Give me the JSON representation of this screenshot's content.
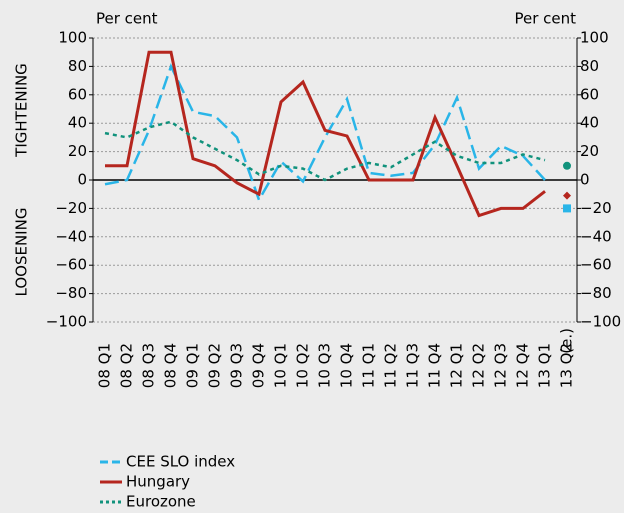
{
  "chart_data": {
    "type": "line",
    "y_label_left": "Per cent",
    "y_label_right": "Per cent",
    "annotation_top": "TIGHTENING",
    "annotation_bottom": "LOOSENING",
    "estimate_label": "(e.)",
    "categories": [
      "08 Q1",
      "08 Q2",
      "08 Q3",
      "08 Q4",
      "09 Q1",
      "09 Q2",
      "09 Q3",
      "09 Q4",
      "10 Q1",
      "10 Q2",
      "10 Q3",
      "10 Q4",
      "11 Q1",
      "11 Q2",
      "11 Q3",
      "11 Q4",
      "12 Q1",
      "12 Q2",
      "12 Q3",
      "12 Q4",
      "13 Q1",
      "13 Q2"
    ],
    "series": [
      {
        "name": "CEE SLO index",
        "color": "#29b5e8",
        "dash": "14 6",
        "marker": "square",
        "values": [
          -3,
          0,
          35,
          80,
          48,
          45,
          30,
          -14,
          13,
          -1,
          30,
          57,
          5,
          3,
          5,
          25,
          58,
          8,
          24,
          17,
          0,
          null
        ],
        "estimate": -20
      },
      {
        "name": "Hungary",
        "color": "#b5261e",
        "dash": "none",
        "marker": "diamond",
        "values": [
          10,
          10,
          90,
          90,
          15,
          10,
          -2,
          -10,
          55,
          69,
          35,
          31,
          0,
          0,
          0,
          44,
          10,
          -25,
          -20,
          -20,
          -8,
          null
        ],
        "estimate": -11
      },
      {
        "name": "Eurozone",
        "color": "#11927c",
        "dash": "4 4",
        "marker": "circle",
        "values": [
          33,
          30,
          37,
          41,
          30,
          22,
          14,
          4,
          10,
          8,
          0,
          8,
          12,
          9,
          18,
          27,
          17,
          12,
          12,
          18,
          14,
          null
        ],
        "estimate": 10
      }
    ],
    "ylim": [
      -100,
      100
    ],
    "yticks": [
      {
        "value": -100,
        "label": "−100"
      },
      {
        "value": -80,
        "label": "−80"
      },
      {
        "value": -60,
        "label": "−60"
      },
      {
        "value": -40,
        "label": "−40"
      },
      {
        "value": -20,
        "label": "−20"
      },
      0,
      20,
      40,
      60,
      80,
      100
    ],
    "y2lim": [
      -100,
      100
    ],
    "y2ticks": [
      {
        "value": -100,
        "label": "−100"
      },
      {
        "value": -80,
        "label": "−80"
      },
      {
        "value": -60,
        "label": "−60"
      },
      {
        "value": -40,
        "label": "−40"
      },
      {
        "value": -20,
        "label": "−20"
      },
      0,
      20,
      40,
      60,
      80,
      100
    ],
    "grid": true
  }
}
